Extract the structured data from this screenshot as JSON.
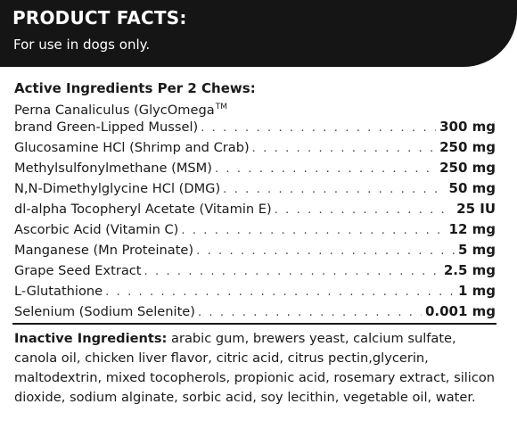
{
  "header": {
    "title": "PRODUCT FACTS:",
    "subtitle": "For use in dogs only."
  },
  "active": {
    "heading": "Active Ingredients Per 2 Chews:",
    "first_line": "Perna Canaliculus (GlycOmega",
    "first_line_tm": "TM",
    "items": [
      {
        "name": "brand Green-Lipped Mussel)",
        "amount": "300 mg"
      },
      {
        "name": "Glucosamine HCl (Shrimp and Crab)",
        "amount": "250 mg"
      },
      {
        "name": "Methylsulfonylmethane (MSM)",
        "amount": "250 mg"
      },
      {
        "name": "N,N-Dimethylglycine HCl (DMG)",
        "amount": "50 mg"
      },
      {
        "name": "dl-alpha Tocopheryl Acetate (Vitamin E)",
        "amount": "25 IU"
      },
      {
        "name": "Ascorbic Acid (Vitamin C)",
        "amount": "12 mg"
      },
      {
        "name": "Manganese (Mn Proteinate)",
        "amount": "5 mg"
      },
      {
        "name": "Grape Seed Extract",
        "amount": "2.5 mg"
      },
      {
        "name": "L-Glutathione",
        "amount": "1 mg"
      },
      {
        "name": "Selenium (Sodium Selenite)",
        "amount": "0.001 mg"
      }
    ]
  },
  "inactive": {
    "label": "Inactive Ingredients:",
    "text": "arabic gum, brewers yeast, calcium sulfate, canola oil, chicken liver flavor, citric acid, citrus pectin,glycerin, maltodextrin, mixed tocopherols, propionic acid, rosemary extract, silicon dioxide, sodium alginate, sorbic acid, soy lecithin, vegetable oil, water."
  }
}
